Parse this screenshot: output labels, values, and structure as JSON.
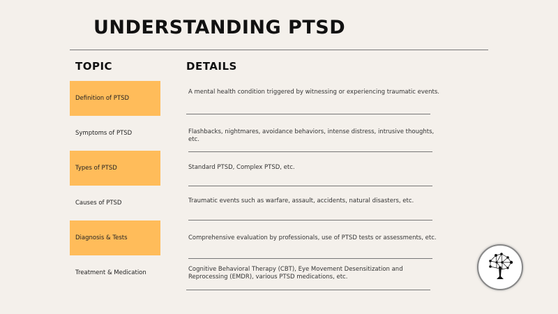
{
  "title": "UNDERSTANDING PTSD",
  "headers": {
    "topic": "TOPIC",
    "details": "DETAILS"
  },
  "accent_color": "#ffbc5a",
  "rows": [
    {
      "topic": "Definition of PTSD",
      "details": "A mental health condition triggered by witnessing or experiencing traumatic events.",
      "highlighted": true
    },
    {
      "topic": "Symptoms of PTSD",
      "details": "Flashbacks, nightmares, avoidance behaviors, intense distress, intrusive thoughts, etc.",
      "highlighted": false
    },
    {
      "topic": "Types of PTSD",
      "details": "Standard PTSD, Complex PTSD, etc.",
      "highlighted": true
    },
    {
      "topic": "Causes of PTSD",
      "details": "Traumatic events such as warfare, assault, accidents, natural disasters, etc.",
      "highlighted": false
    },
    {
      "topic": "Diagnosis & Tests",
      "details": "Comprehensive evaluation by professionals, use of PTSD tests or assessments, etc.",
      "highlighted": true
    },
    {
      "topic": "Treatment & Medication",
      "details": "Cognitive Behavioral Therapy (CBT), Eye Movement Desensitization and Reprocessing (EMDR), various PTSD medications, etc.",
      "highlighted": false
    }
  ],
  "logo": {
    "icon": "network-tree-icon"
  }
}
